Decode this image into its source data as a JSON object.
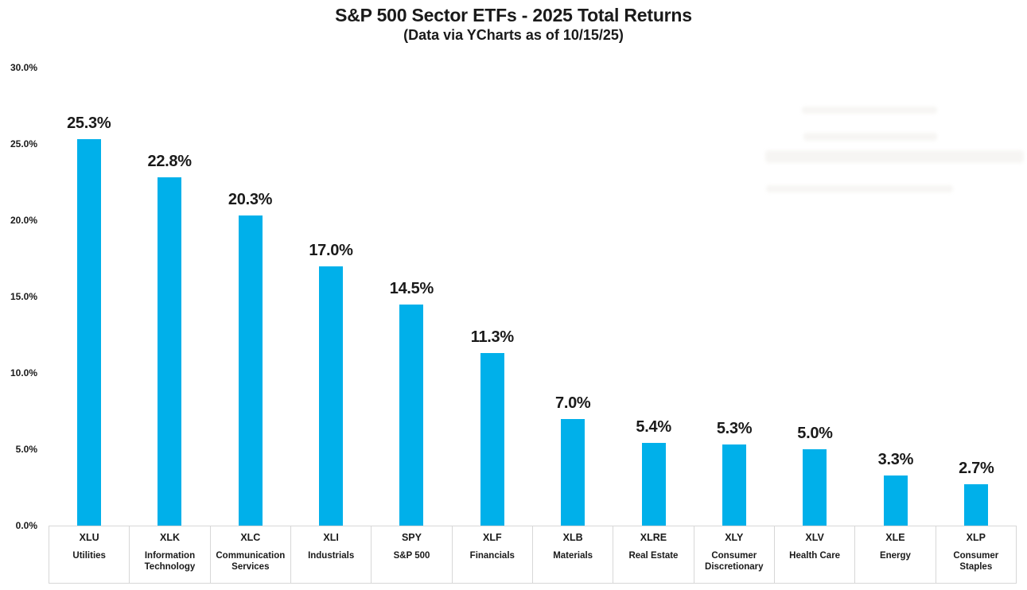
{
  "chart_data": {
    "type": "bar",
    "title": "S&P 500 Sector ETFs - 2025 Total Returns",
    "subtitle": "(Data via YCharts as of 10/15/25)",
    "categories": [
      {
        "ticker": "XLU",
        "sector": "Utilities"
      },
      {
        "ticker": "XLK",
        "sector": "Information Technology"
      },
      {
        "ticker": "XLC",
        "sector": "Communication Services"
      },
      {
        "ticker": "XLI",
        "sector": "Industrials"
      },
      {
        "ticker": "SPY",
        "sector": "S&P 500"
      },
      {
        "ticker": "XLF",
        "sector": "Financials"
      },
      {
        "ticker": "XLB",
        "sector": "Materials"
      },
      {
        "ticker": "XLRE",
        "sector": "Real Estate"
      },
      {
        "ticker": "XLY",
        "sector": "Consumer Discretionary"
      },
      {
        "ticker": "XLV",
        "sector": "Health Care"
      },
      {
        "ticker": "XLE",
        "sector": "Energy"
      },
      {
        "ticker": "XLP",
        "sector": "Consumer Staples"
      }
    ],
    "values": [
      25.3,
      22.8,
      20.3,
      17.0,
      14.5,
      11.3,
      7.0,
      5.4,
      5.3,
      5.0,
      3.3,
      2.7
    ],
    "value_labels": [
      "25.3%",
      "22.8%",
      "20.3%",
      "17.0%",
      "14.5%",
      "11.3%",
      "7.0%",
      "5.4%",
      "5.3%",
      "5.0%",
      "3.3%",
      "2.7%"
    ],
    "y_ticks": [
      {
        "label": "30.0%",
        "value": 30
      },
      {
        "label": "25.0%",
        "value": 25
      },
      {
        "label": "20.0%",
        "value": 20
      },
      {
        "label": "15.0%",
        "value": 15
      },
      {
        "label": "10.0%",
        "value": 10
      },
      {
        "label": "5.0%",
        "value": 5
      },
      {
        "label": "0.0%",
        "value": 0
      }
    ],
    "ylim": [
      0,
      30
    ],
    "grid": false,
    "legend": null,
    "xlabel": "",
    "ylabel": "",
    "bar_color": "#00B0EA",
    "text_color": "#1a1a1a",
    "axis_border_color": "#d7d7d7"
  }
}
